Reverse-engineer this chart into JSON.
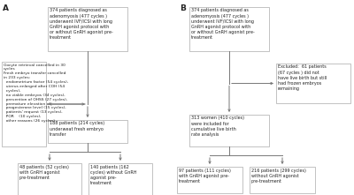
{
  "bg_color": "#ffffff",
  "box_edge_color": "#aaaaaa",
  "box_face_color": "#ffffff",
  "arrow_color": "#777777",
  "text_color": "#222222",
  "font_size": 3.5,
  "label_font_size": 6.5,
  "panel_A_label": "A",
  "panel_B_label": "B",
  "boxA_top": "374 patients diagnosed as\nadenomyosis (477 cycles )\nunderwent IVF/ICSI with long\nGnRH agonist protocol with\nor without GnRH agonist pre-\ntreatment",
  "boxA_mid": "188 patients (214 cycles)\nunderweat fresh embryo\ntransfer",
  "boxA_left_exclude": "Oocyte retrieval cancelled in 30\ncycles\nFresh embryo transfer cancelled\nin 233 cycles:\n  endometrium factor (54 cycles),\n  uterus enlarged after COH (54\n  cycles),\n  no viable embryos (34 cycles),\n  prevention of OHSS (27 cycles),\n  premature elevation of\n  progesterone level (15 cycles),\n  patients' request (13 cycles),\n  POR    (10 cycles),\n  other reasons (26 cycles)",
  "boxA_bot_left": "48 patients (52 cycles)\nwith GnRH agonist\npre-treatment",
  "boxA_bot_right": "140 patients (162\ncycles) without GnRH\nagonist pre-\ntreatment",
  "boxB_top": "374 patients diagnosed as\nadenomyosis (477 cycles )\nunderwent IVF/ICSI with long\nGnRH agonist protocol with\nor without GnRH agonist pre-\ntreatment",
  "boxB_right_exclude": "Excluded:  61 patients\n(67 cycles ) did not\nhave live birth but still\nhad frozen embryos\nremaining",
  "boxB_mid": "313 women (410 cycles)\nwere included for\ncumulative live birth\nrate analysis",
  "boxB_bot_left": "97 patients (111 cycles)\nwith GnRH agonist pre-\ntreatment",
  "boxB_bot_right": "216 patients (299 cycles)\nwithout GnRH agonist\npre-treatment"
}
